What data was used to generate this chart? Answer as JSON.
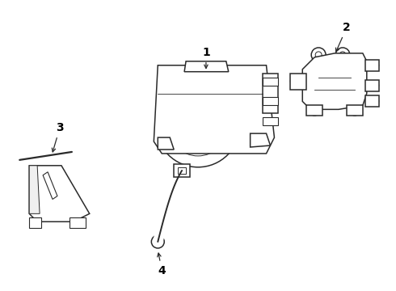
{
  "bg_color": "#ffffff",
  "line_color": "#2a2a2a",
  "label_color": "#000000",
  "lw": 1.1
}
